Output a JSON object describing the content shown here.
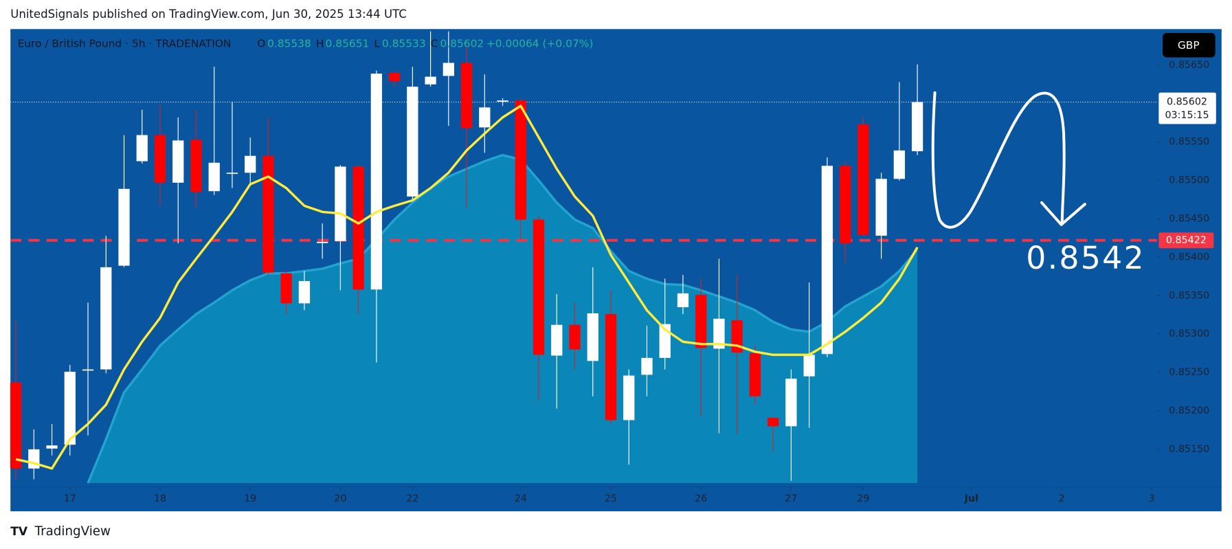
{
  "header": "UnitedSignals published on TradingView.com, Jun 30, 2025 13:44 UTC",
  "footer": "TradingView",
  "currency_button": "GBP",
  "legend": {
    "symbol": "Euro / British Pound · 5h · TRADENATION",
    "o_label": "O",
    "open": 0.85538,
    "h_label": "H",
    "high": 0.85651,
    "l_label": "L",
    "low": 0.85533,
    "c_label": "C",
    "close": 0.85602,
    "change": "+0.00064 (+0.07%)"
  },
  "chart_data": {
    "type": "candlestick",
    "up_color": "#ffffff",
    "down_color": "#ff0000",
    "open": [
      0.85237,
      0.85125,
      0.85151,
      0.85156,
      0.85254,
      0.85254,
      0.85389,
      0.85525,
      0.85559,
      0.85497,
      0.85553,
      0.85486,
      0.8551,
      0.8551,
      0.85532,
      0.85379,
      0.8534,
      0.8542,
      0.85421,
      0.85518,
      0.85358,
      0.8564,
      0.85479,
      0.85625,
      0.85636,
      0.85653,
      0.85569,
      0.85604,
      0.85604,
      0.85449,
      0.85272,
      0.85312,
      0.85265,
      0.85326,
      0.85188,
      0.85247,
      0.85269,
      0.85335,
      0.85351,
      0.85281,
      0.85318,
      0.85275,
      0.85191,
      0.8518,
      0.85245,
      0.85274,
      0.85519,
      0.85573,
      0.85428,
      0.85502,
      0.85538
    ],
    "high": [
      0.85318,
      0.85176,
      0.85183,
      0.8526,
      0.85341,
      0.85428,
      0.85559,
      0.85592,
      0.85599,
      0.85582,
      0.85592,
      0.85648,
      0.85602,
      0.85556,
      0.85582,
      0.85382,
      0.85382,
      0.85444,
      0.8552,
      0.8552,
      0.85643,
      0.85643,
      0.85648,
      0.85694,
      0.85694,
      0.85674,
      0.85638,
      0.85607,
      0.85607,
      0.85454,
      0.85352,
      0.85341,
      0.85387,
      0.85357,
      0.85254,
      0.85311,
      0.85372,
      0.85377,
      0.85372,
      0.85398,
      0.85377,
      0.85285,
      0.85193,
      0.85254,
      0.85367,
      0.8553,
      0.85525,
      0.85582,
      0.8551,
      0.85628,
      0.85651
    ],
    "low": [
      0.85111,
      0.85111,
      0.85142,
      0.85142,
      0.85168,
      0.85249,
      0.85387,
      0.85522,
      0.85467,
      0.85418,
      0.85464,
      0.85481,
      0.8549,
      0.85493,
      0.85377,
      0.85326,
      0.85331,
      0.85398,
      0.85357,
      0.85326,
      0.85263,
      0.85622,
      0.85474,
      0.85622,
      0.85571,
      0.85464,
      0.85536,
      0.85597,
      0.85423,
      0.85214,
      0.85203,
      0.85254,
      0.85219,
      0.85183,
      0.8513,
      0.85219,
      0.85254,
      0.85326,
      0.85193,
      0.85171,
      0.8517,
      0.85208,
      0.85147,
      0.85109,
      0.85178,
      0.8527,
      0.85392,
      0.85428,
      0.85398,
      0.855,
      0.85533
    ],
    "close": [
      0.85125,
      0.8515,
      0.85155,
      0.85251,
      0.85254,
      0.85387,
      0.85489,
      0.85559,
      0.85497,
      0.85552,
      0.85485,
      0.85523,
      0.8551,
      0.85532,
      0.8538,
      0.8534,
      0.85369,
      0.8542,
      0.85518,
      0.85358,
      0.85639,
      0.85629,
      0.85622,
      0.85635,
      0.85653,
      0.85568,
      0.85595,
      0.85604,
      0.85449,
      0.85273,
      0.85312,
      0.8528,
      0.85327,
      0.85188,
      0.85246,
      0.85269,
      0.85313,
      0.85353,
      0.85282,
      0.8532,
      0.85276,
      0.85219,
      0.8518,
      0.85242,
      0.85273,
      0.85519,
      0.85418,
      0.85429,
      0.85502,
      0.85539,
      0.85602
    ],
    "line": {
      "color": "#ffeb3b",
      "values": [
        0.85137,
        0.85132,
        0.85125,
        0.85163,
        0.85183,
        0.85208,
        0.85254,
        0.8529,
        0.85321,
        0.85367,
        0.85398,
        0.85428,
        0.85459,
        0.85495,
        0.85505,
        0.8549,
        0.85467,
        0.85459,
        0.85457,
        0.85444,
        0.85459,
        0.85467,
        0.85474,
        0.8549,
        0.8551,
        0.85539,
        0.85561,
        0.85582,
        0.85597,
        0.85556,
        0.85515,
        0.85479,
        0.85454,
        0.85403,
        0.85367,
        0.85331,
        0.85306,
        0.8529,
        0.85287,
        0.85287,
        0.85285,
        0.85277,
        0.85273,
        0.85273,
        0.85273,
        0.85287,
        0.85303,
        0.85321,
        0.85341,
        0.85372,
        0.85413
      ]
    },
    "area": {
      "color": "#0a86b8",
      "edge_color": "#22a3d0",
      "values": [
        null,
        null,
        null,
        null,
        0.85106,
        0.85163,
        0.85224,
        0.85254,
        0.85285,
        0.85306,
        0.85326,
        0.85341,
        0.85357,
        0.8537,
        0.85379,
        0.85379,
        0.85382,
        0.85385,
        0.85392,
        0.85398,
        0.85423,
        0.85449,
        0.85471,
        0.8549,
        0.85505,
        0.85515,
        0.85525,
        0.85533,
        0.85527,
        0.855,
        0.85471,
        0.85449,
        0.85438,
        0.85408,
        0.85382,
        0.85372,
        0.85365,
        0.85364,
        0.85357,
        0.85349,
        0.85341,
        0.85331,
        0.85316,
        0.85306,
        0.85303,
        0.85316,
        0.85336,
        0.85349,
        0.85362,
        0.85382,
        0.8541
      ]
    },
    "hline": {
      "value": 0.85422,
      "color": "#f23645"
    },
    "countdown": "03:15:15",
    "annotation": "0.8542",
    "xlim": [
      -0.3,
      63.3
    ],
    "xticks": [
      {
        "value": 3,
        "label": "17"
      },
      {
        "value": 8,
        "label": "18"
      },
      {
        "value": 13,
        "label": "19"
      },
      {
        "value": 18,
        "label": "20"
      },
      {
        "value": 22,
        "label": "22"
      },
      {
        "value": 28,
        "label": "24"
      },
      {
        "value": 33,
        "label": "25"
      },
      {
        "value": 38,
        "label": "26"
      },
      {
        "value": 43,
        "label": "27"
      },
      {
        "value": 47,
        "label": "29"
      },
      {
        "value": 53,
        "label": "Jul"
      },
      {
        "value": 58,
        "label": "2"
      },
      {
        "value": 63,
        "label": "3"
      }
    ],
    "ylim": [
      0.85101,
      0.85697
    ],
    "yticks": [
      {
        "value": 0.8515,
        "label": "0.85150"
      },
      {
        "value": 0.852,
        "label": "0.85200"
      },
      {
        "value": 0.8525,
        "label": "0.85250"
      },
      {
        "value": 0.853,
        "label": "0.85300"
      },
      {
        "value": 0.8535,
        "label": "0.85350"
      },
      {
        "value": 0.854,
        "label": "0.85400"
      },
      {
        "value": 0.8545,
        "label": "0.85450"
      },
      {
        "value": 0.855,
        "label": "0.85500"
      },
      {
        "value": 0.8555,
        "label": "0.85550"
      },
      {
        "value": 0.8565,
        "label": "0.85650"
      }
    ]
  }
}
